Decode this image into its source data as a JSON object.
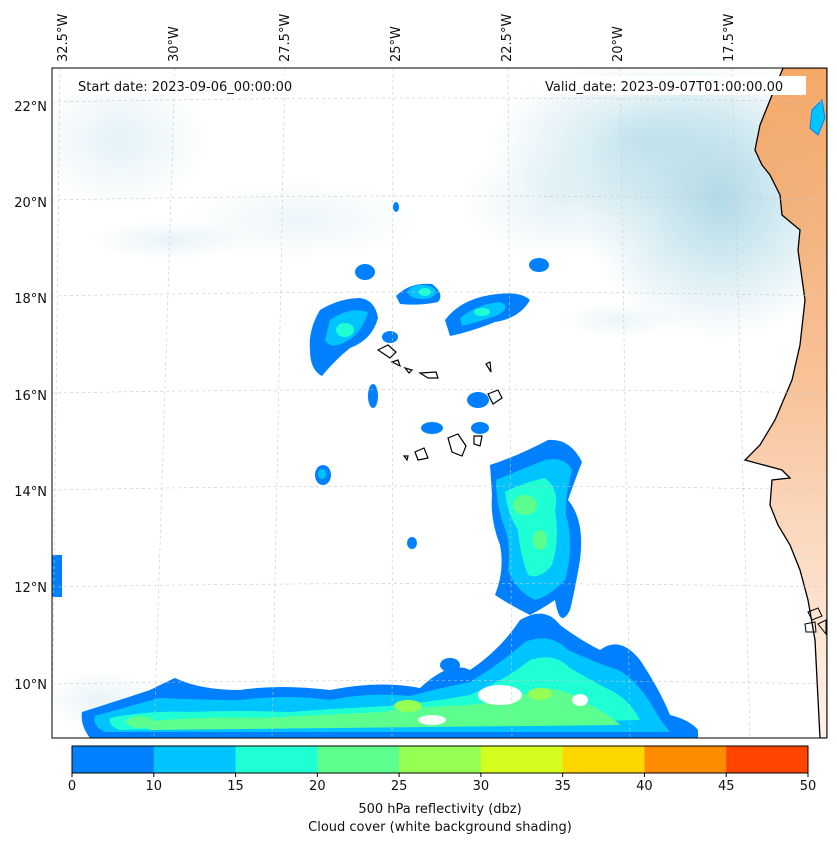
{
  "header": {
    "start_date": "Start date: 2023-09-06_00:00:00",
    "valid_date": "Valid_date: 2023-09-07T01:00:00.00"
  },
  "longitude_labels": [
    "32.5°W",
    "30°W",
    "27.5°W",
    "25°W",
    "22.5°W",
    "20°W",
    "17.5°W"
  ],
  "latitude_labels": [
    "22°N",
    "20°N",
    "18°N",
    "16°N",
    "14°N",
    "12°N",
    "10°N"
  ],
  "colorbar": {
    "ticks": [
      "0",
      "10",
      "15",
      "20",
      "25",
      "30",
      "35",
      "40",
      "45",
      "50"
    ],
    "colors": [
      "#0080ff",
      "#00c4ff",
      "#1effd4",
      "#5cff8e",
      "#96ff54",
      "#d4ff1e",
      "#ffd700",
      "#ff8c00",
      "#ff4500"
    ],
    "label_line1": "500 hPa reflectivity (dbz)",
    "label_line2": "Cloud cover (white background shading)"
  },
  "colors": {
    "cloud": "#add8e6",
    "land": "#f4a460",
    "coast": "#000000",
    "grid": "#c8c8c8"
  }
}
